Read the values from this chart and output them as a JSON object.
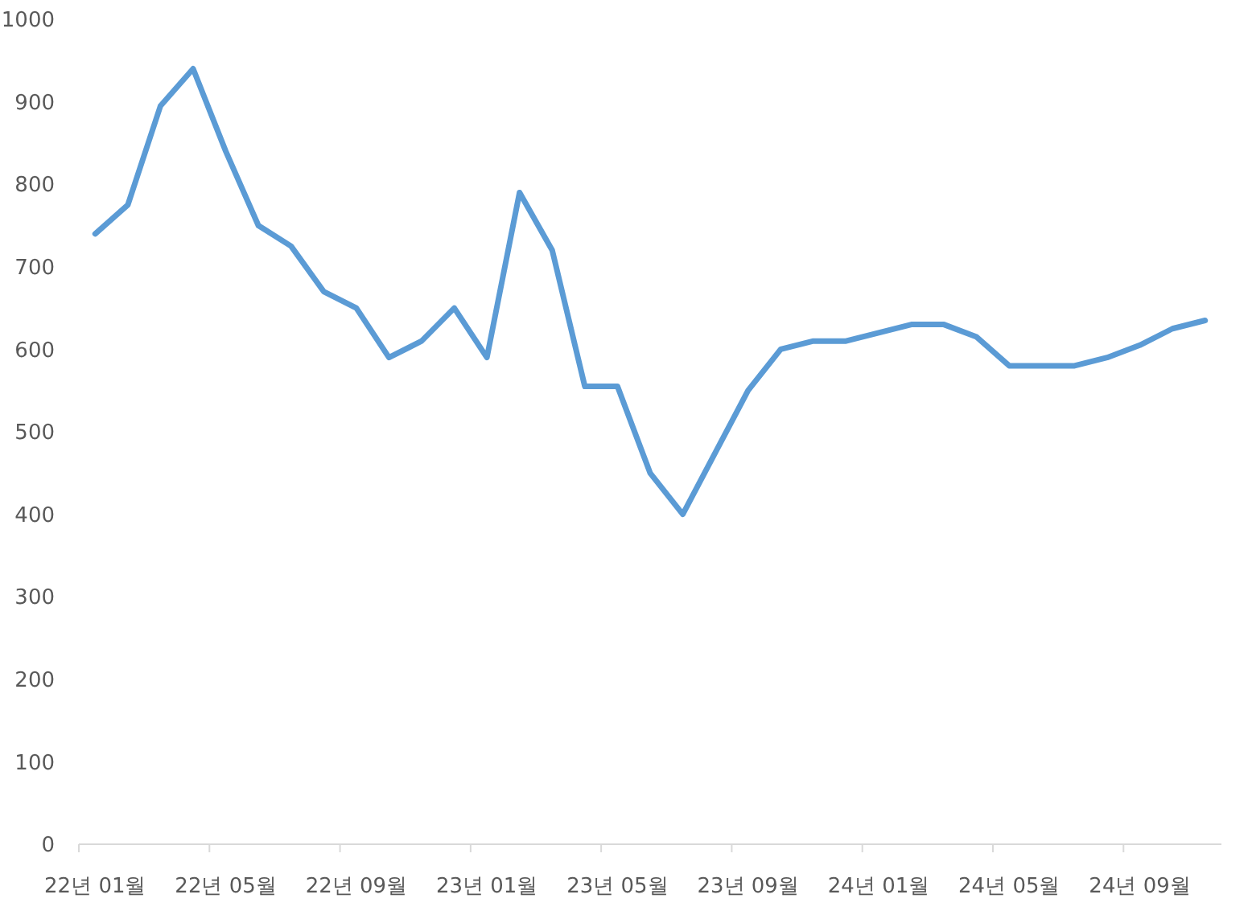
{
  "chart_data": {
    "type": "line",
    "categories": [
      "22년 01월",
      null,
      null,
      null,
      "22년 05월",
      null,
      null,
      null,
      "22년 09월",
      null,
      null,
      null,
      "23년 01월",
      null,
      null,
      null,
      "23년 05월",
      null,
      null,
      null,
      "23년 09월",
      null,
      null,
      null,
      "24년 01월",
      null,
      null,
      null,
      "24년 05월",
      null,
      null,
      null,
      "24년 09월",
      null,
      null
    ],
    "series": [
      {
        "color": "#5b9bd5",
        "values": [
          740,
          775,
          895,
          940,
          840,
          750,
          725,
          670,
          650,
          590,
          610,
          650,
          590,
          790,
          720,
          555,
          555,
          450,
          400,
          475,
          550,
          600,
          610,
          610,
          620,
          630,
          630,
          615,
          580,
          580,
          580,
          590,
          605,
          625,
          635
        ]
      }
    ],
    "ylim": [
      0,
      1000
    ],
    "yticks": [
      0,
      100,
      200,
      300,
      400,
      500,
      600,
      700,
      800,
      900,
      1000
    ],
    "grid": false,
    "marker": "none",
    "line_style": "solid"
  }
}
